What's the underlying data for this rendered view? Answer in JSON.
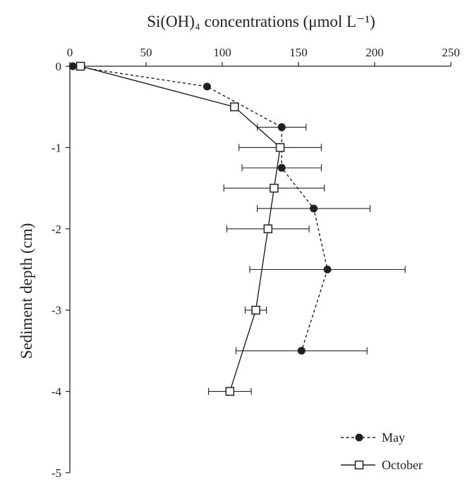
{
  "chart_data": {
    "type": "line",
    "title": "",
    "xlabel": "Si(OH)₄ concentrations (μmol L⁻¹)",
    "ylabel": "Sediment depth (cm)",
    "xlim": [
      0,
      250
    ],
    "ylim": [
      -5,
      0
    ],
    "x_ticks": [
      0,
      50,
      100,
      150,
      200,
      250
    ],
    "y_ticks": [
      0,
      -1,
      -2,
      -3,
      -4,
      -5
    ],
    "x_tick_labels": [
      "0",
      "50",
      "100",
      "150",
      "200",
      "250"
    ],
    "y_tick_labels": [
      "0",
      "-1",
      "-2",
      "-3",
      "-4",
      "-5"
    ],
    "x_axis_position": "top",
    "grid": false,
    "legend_position": "bottom-right",
    "series": [
      {
        "name": "May",
        "marker": "filled-circle",
        "line_style": "dashed",
        "color": "#231f20",
        "points": [
          {
            "x": 2,
            "y": 0,
            "err": 0
          },
          {
            "x": 90,
            "y": -0.25,
            "err": 0
          },
          {
            "x": 139,
            "y": -0.75,
            "err": 16
          },
          {
            "x": 139,
            "y": -1.25,
            "err": 26
          },
          {
            "x": 160,
            "y": -1.75,
            "err": 37
          },
          {
            "x": 169,
            "y": -2.5,
            "err": 51
          },
          {
            "x": 152,
            "y": -3.5,
            "err": 43
          }
        ]
      },
      {
        "name": "October",
        "marker": "open-square",
        "line_style": "solid",
        "color": "#231f20",
        "points": [
          {
            "x": 7,
            "y": 0,
            "err": 0
          },
          {
            "x": 108,
            "y": -0.5,
            "err": 0
          },
          {
            "x": 138,
            "y": -1.0,
            "err": 27
          },
          {
            "x": 134,
            "y": -1.5,
            "err": 33
          },
          {
            "x": 130,
            "y": -2.0,
            "err": 27
          },
          {
            "x": 122,
            "y": -3.0,
            "err": 7
          },
          {
            "x": 105,
            "y": -4.0,
            "err": 14
          }
        ]
      }
    ]
  }
}
